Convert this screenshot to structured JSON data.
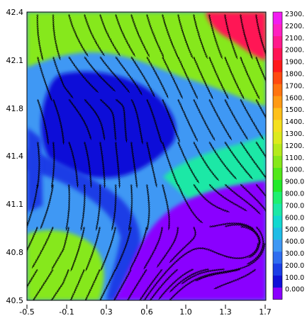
{
  "chart_data": {
    "type": "heatmap",
    "title": "",
    "xlabel": "",
    "ylabel": "",
    "xlim": [
      -0.5,
      1.7
    ],
    "ylim": [
      40.5,
      42.4
    ],
    "x_ticks": [
      "-0.5",
      "-0.1",
      "0.3",
      "0.6",
      "1.0",
      "1.3",
      "1.7"
    ],
    "y_ticks": [
      "42.4",
      "42.1",
      "41.8",
      "41.4",
      "41.1",
      "40.8",
      "40.5"
    ],
    "overlay": "streamlines",
    "legend_position": "right",
    "colorbar": {
      "levels": [
        {
          "label": "0.000",
          "color": "#8a00ff"
        },
        {
          "label": "100.0",
          "color": "#1010d8"
        },
        {
          "label": "200.0",
          "color": "#1b3ee6"
        },
        {
          "label": "300.0",
          "color": "#2f6df0"
        },
        {
          "label": "400.0",
          "color": "#3f98f4"
        },
        {
          "label": "500.0",
          "color": "#1fbce6"
        },
        {
          "label": "600.0",
          "color": "#12d8d0"
        },
        {
          "label": "700.0",
          "color": "#1ce8a6"
        },
        {
          "label": "800.0",
          "color": "#1ef070"
        },
        {
          "label": "900.0",
          "color": "#22ea2a"
        },
        {
          "label": "1000.",
          "color": "#52e81a"
        },
        {
          "label": "1100.",
          "color": "#86e81a"
        },
        {
          "label": "1200.",
          "color": "#b4ea1c"
        },
        {
          "label": "1300.",
          "color": "#dcea1e"
        },
        {
          "label": "1400.",
          "color": "#f4e01e"
        },
        {
          "label": "1500.",
          "color": "#ffc01a"
        },
        {
          "label": "1600.",
          "color": "#ff9a14"
        },
        {
          "label": "1700.",
          "color": "#ff7410"
        },
        {
          "label": "1800.",
          "color": "#ff4a10"
        },
        {
          "label": "1900.",
          "color": "#ff1a1a"
        },
        {
          "label": "2000.",
          "color": "#ff1454"
        },
        {
          "label": "2100.",
          "color": "#ff1a8c"
        },
        {
          "label": "2200.",
          "color": "#ff20c0"
        },
        {
          "label": "2300.",
          "color": "#f21cf0"
        }
      ]
    },
    "regions": [
      {
        "name": "background",
        "level": 4
      },
      {
        "name": "north-coast-band",
        "level": 11
      },
      {
        "name": "north-east-peaks",
        "level": 20
      },
      {
        "name": "central-depression",
        "level": 1
      },
      {
        "name": "valley-channel",
        "level": 2
      },
      {
        "name": "south-west-highland",
        "level": 11
      },
      {
        "name": "west-edge",
        "level": 2
      },
      {
        "name": "eastern-ridge",
        "level": 7
      },
      {
        "name": "sea",
        "level": 0
      }
    ],
    "streamlines": [
      {
        "name": "sea-vortex",
        "center": [
          1.55,
          40.88
        ]
      }
    ]
  }
}
